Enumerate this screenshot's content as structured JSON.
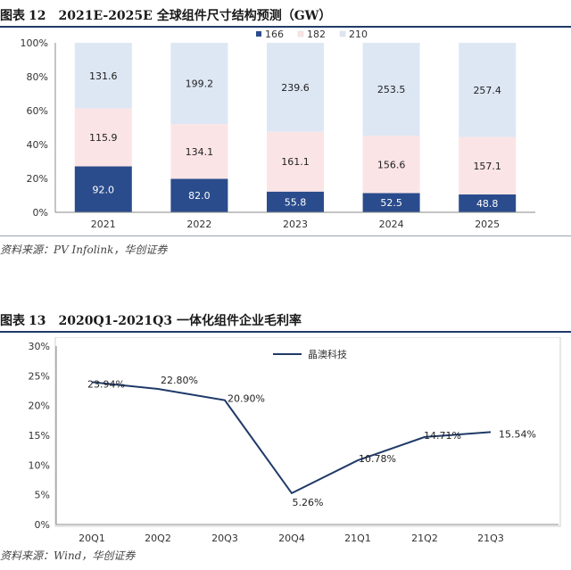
{
  "figure1": {
    "label": "图表",
    "number": "12",
    "title": "2021E-2025E 全球组件尺寸结构预测（GW）",
    "source": "资料来源：PV Infolink，华创证券"
  },
  "figure2": {
    "label": "图表",
    "number": "13",
    "title": "2020Q1-2021Q3 一体化组件企业毛利率",
    "source": "资料来源：Wind，华创证券"
  },
  "chart_data": [
    {
      "type": "bar",
      "stacked": true,
      "normalized": true,
      "categories": [
        "2021",
        "2022",
        "2023",
        "2024",
        "2025"
      ],
      "series": [
        {
          "name": "166",
          "color": "#2b4c8c",
          "values": [
            92.0,
            82.0,
            55.8,
            52.5,
            48.8
          ]
        },
        {
          "name": "182",
          "color": "#fbe4e6",
          "values": [
            115.9,
            134.1,
            161.1,
            156.6,
            157.1
          ]
        },
        {
          "name": "210",
          "color": "#dde7f4",
          "values": [
            131.6,
            199.2,
            239.6,
            253.5,
            257.4
          ]
        }
      ],
      "value_labels": {
        "166": [
          "92.0",
          "82.0",
          "55.8",
          "52.5",
          "48.8"
        ],
        "182": [
          "115.9",
          "134.1",
          "161.1",
          "156.6",
          "157.1"
        ],
        "210": [
          "131.6",
          "199.2",
          "239.6",
          "253.5",
          "257.4"
        ]
      },
      "y_ticks": [
        "0%",
        "20%",
        "40%",
        "60%",
        "80%",
        "100%"
      ],
      "ylim": [
        0,
        100
      ],
      "legend_position": "top-right",
      "grid": false
    },
    {
      "type": "line",
      "categories": [
        "20Q1",
        "20Q2",
        "20Q3",
        "20Q4",
        "21Q1",
        "21Q2",
        "21Q3"
      ],
      "series": [
        {
          "name": "晶澳科技",
          "color": "#1f3a68",
          "values": [
            23.94,
            22.8,
            20.9,
            5.26,
            10.78,
            14.71,
            15.54
          ],
          "value_labels": [
            "23.94%",
            "22.80%",
            "20.90%",
            "5.26%",
            "10.78%",
            "14.71%",
            "15.54%"
          ]
        }
      ],
      "y_ticks": [
        "0%",
        "5%",
        "10%",
        "15%",
        "20%",
        "25%",
        "30%"
      ],
      "ylim": [
        0,
        30
      ],
      "legend_position": "top-center",
      "grid": false
    }
  ]
}
